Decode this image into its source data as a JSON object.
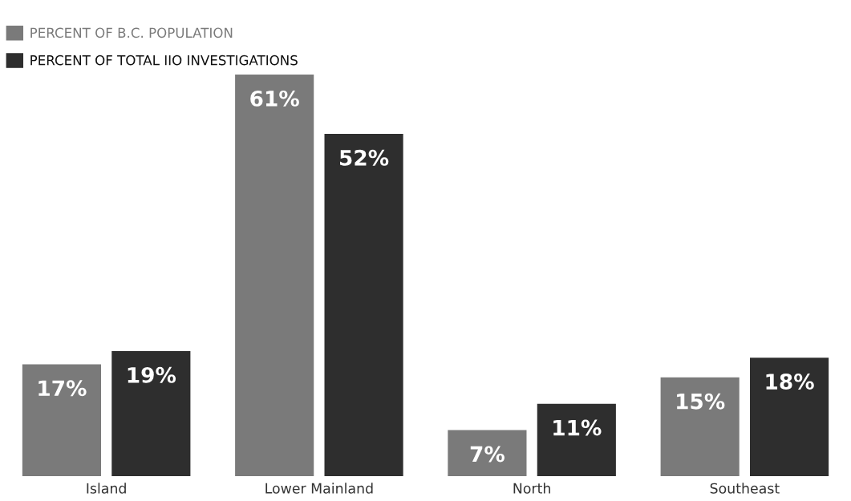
{
  "chart_data": {
    "type": "bar",
    "categories": [
      "Island",
      "Lower Mainland",
      "North",
      "Southeast"
    ],
    "series": [
      {
        "name": "PERCENT OF B.C. POPULATION",
        "color": "#7a7a7a",
        "values": [
          17,
          61,
          7,
          15
        ],
        "value_labels": [
          "17%",
          "61%",
          "7%",
          "15%"
        ]
      },
      {
        "name": "PERCENT OF TOTAL IIO INVESTIGATIONS",
        "color": "#2e2e2e",
        "values": [
          19,
          52,
          11,
          18
        ],
        "value_labels": [
          "19%",
          "52%",
          "11%",
          "18%"
        ]
      }
    ],
    "legend": "top left",
    "tick_labels": "x",
    "grid": false
  }
}
